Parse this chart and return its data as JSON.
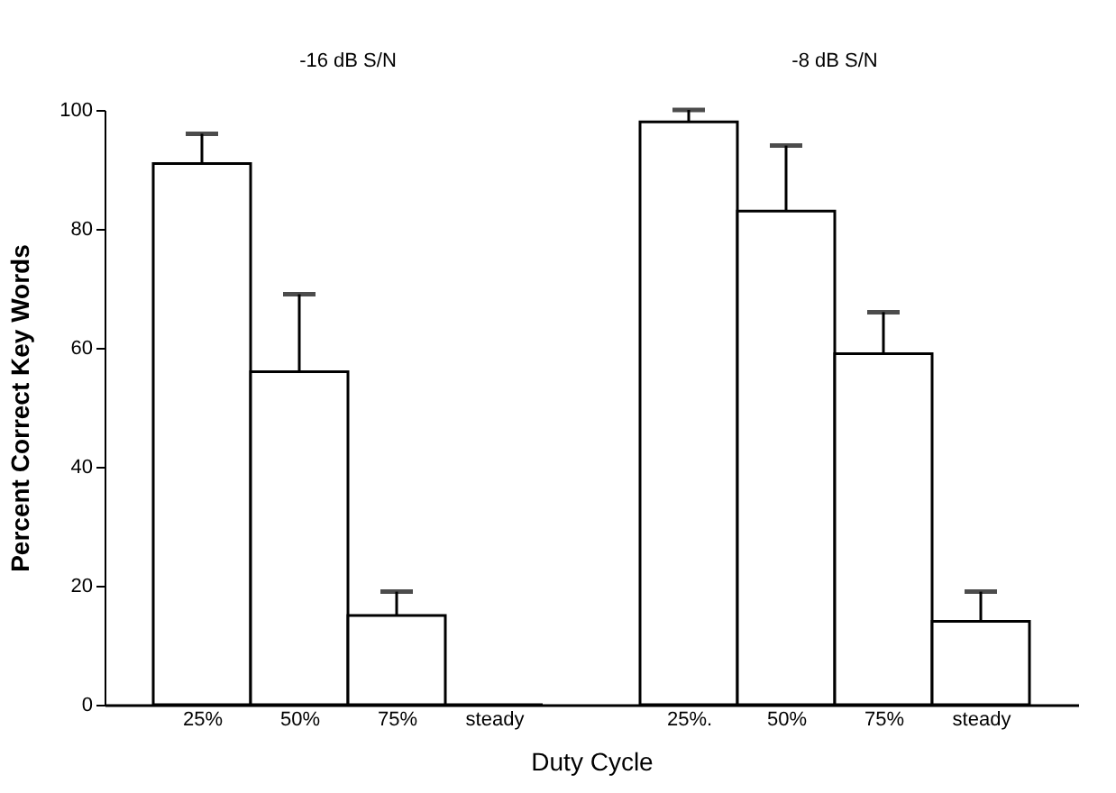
{
  "chart_data": {
    "type": "bar",
    "xlabel": "Duty Cycle",
    "ylabel": "Percent Correct Key Words",
    "annotations": [
      "-16 dB S/N",
      "-8 dB S/N"
    ],
    "categories": [
      "25%",
      "50%",
      "75%",
      "steady",
      null,
      "25%.",
      "50%",
      "75%",
      "steady"
    ],
    "values": [
      91,
      56,
      15,
      0,
      null,
      98,
      83,
      59,
      14
    ],
    "errors": [
      [
        91,
        96
      ],
      [
        56,
        69
      ],
      [
        15,
        19
      ],
      null,
      null,
      [
        98,
        100
      ],
      [
        83,
        94
      ],
      [
        59,
        66
      ],
      [
        14,
        19
      ]
    ],
    "color": "#ffffff",
    "ylim": [
      0,
      100
    ],
    "yticks": [
      0,
      20,
      40,
      60,
      80,
      100
    ],
    "grid": false
  }
}
